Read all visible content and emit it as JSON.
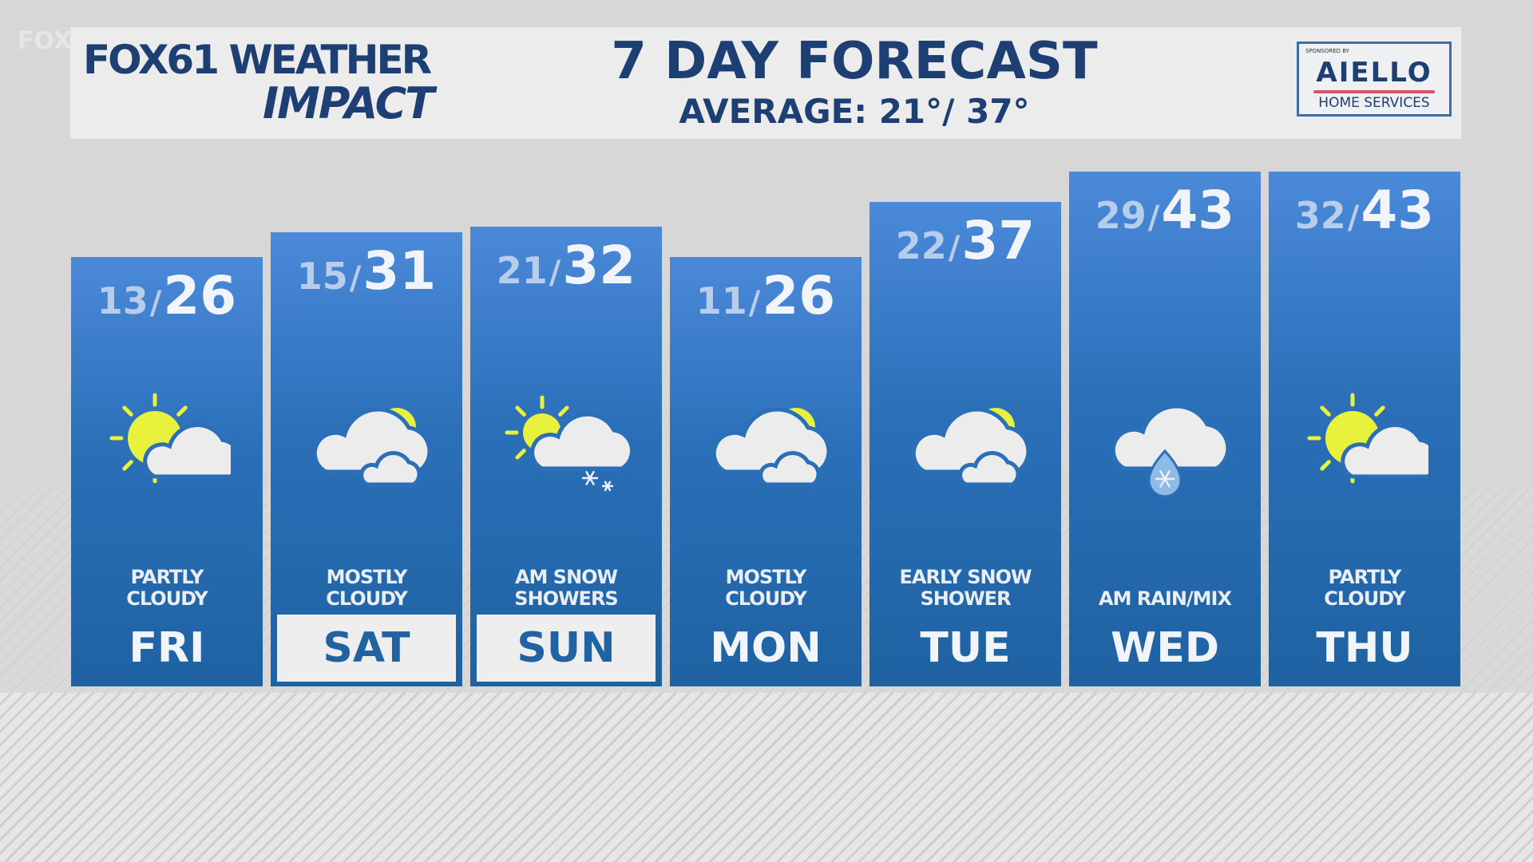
{
  "header": {
    "ghost_text": "FOX",
    "logo": {
      "brand": "FOX61",
      "line1": "WEATHER",
      "line2": "IMPACT"
    },
    "title": "7 DAY FORECAST",
    "average": "AVERAGE: 21°/ 37°"
  },
  "sponsor": {
    "label": "SPONSORED BY",
    "name": "AIELLO",
    "tagline": "HOME SERVICES"
  },
  "colors": {
    "navy": "#1d3f74",
    "column_top": "#4b89d9",
    "column_bottom": "#1f62a2",
    "sun": "#e8f23c",
    "cloud": "#ececec"
  },
  "days": [
    {
      "day": "FRI",
      "low": "13",
      "high": "26",
      "condition": "PARTLY\nCLOUDY",
      "icon": "partly-cloudy-icon",
      "highlight": false
    },
    {
      "day": "SAT",
      "low": "15",
      "high": "31",
      "condition": "MOSTLY\nCLOUDY",
      "icon": "mostly-cloudy-icon",
      "highlight": true
    },
    {
      "day": "SUN",
      "low": "21",
      "high": "32",
      "condition": "AM SNOW\nSHOWERS",
      "icon": "snow-showers-icon",
      "highlight": true
    },
    {
      "day": "MON",
      "low": "11",
      "high": "26",
      "condition": "MOSTLY\nCLOUDY",
      "icon": "mostly-cloudy-icon",
      "highlight": false
    },
    {
      "day": "TUE",
      "low": "22",
      "high": "37",
      "condition": "EARLY SNOW\nSHOWER",
      "icon": "mostly-cloudy-icon",
      "highlight": false
    },
    {
      "day": "WED",
      "low": "29",
      "high": "43",
      "condition": "AM RAIN/MIX",
      "icon": "rain-snow-mix-icon",
      "highlight": false
    },
    {
      "day": "THU",
      "low": "32",
      "high": "43",
      "condition": "PARTLY\nCLOUDY",
      "icon": "partly-cloudy-icon",
      "highlight": false
    }
  ]
}
